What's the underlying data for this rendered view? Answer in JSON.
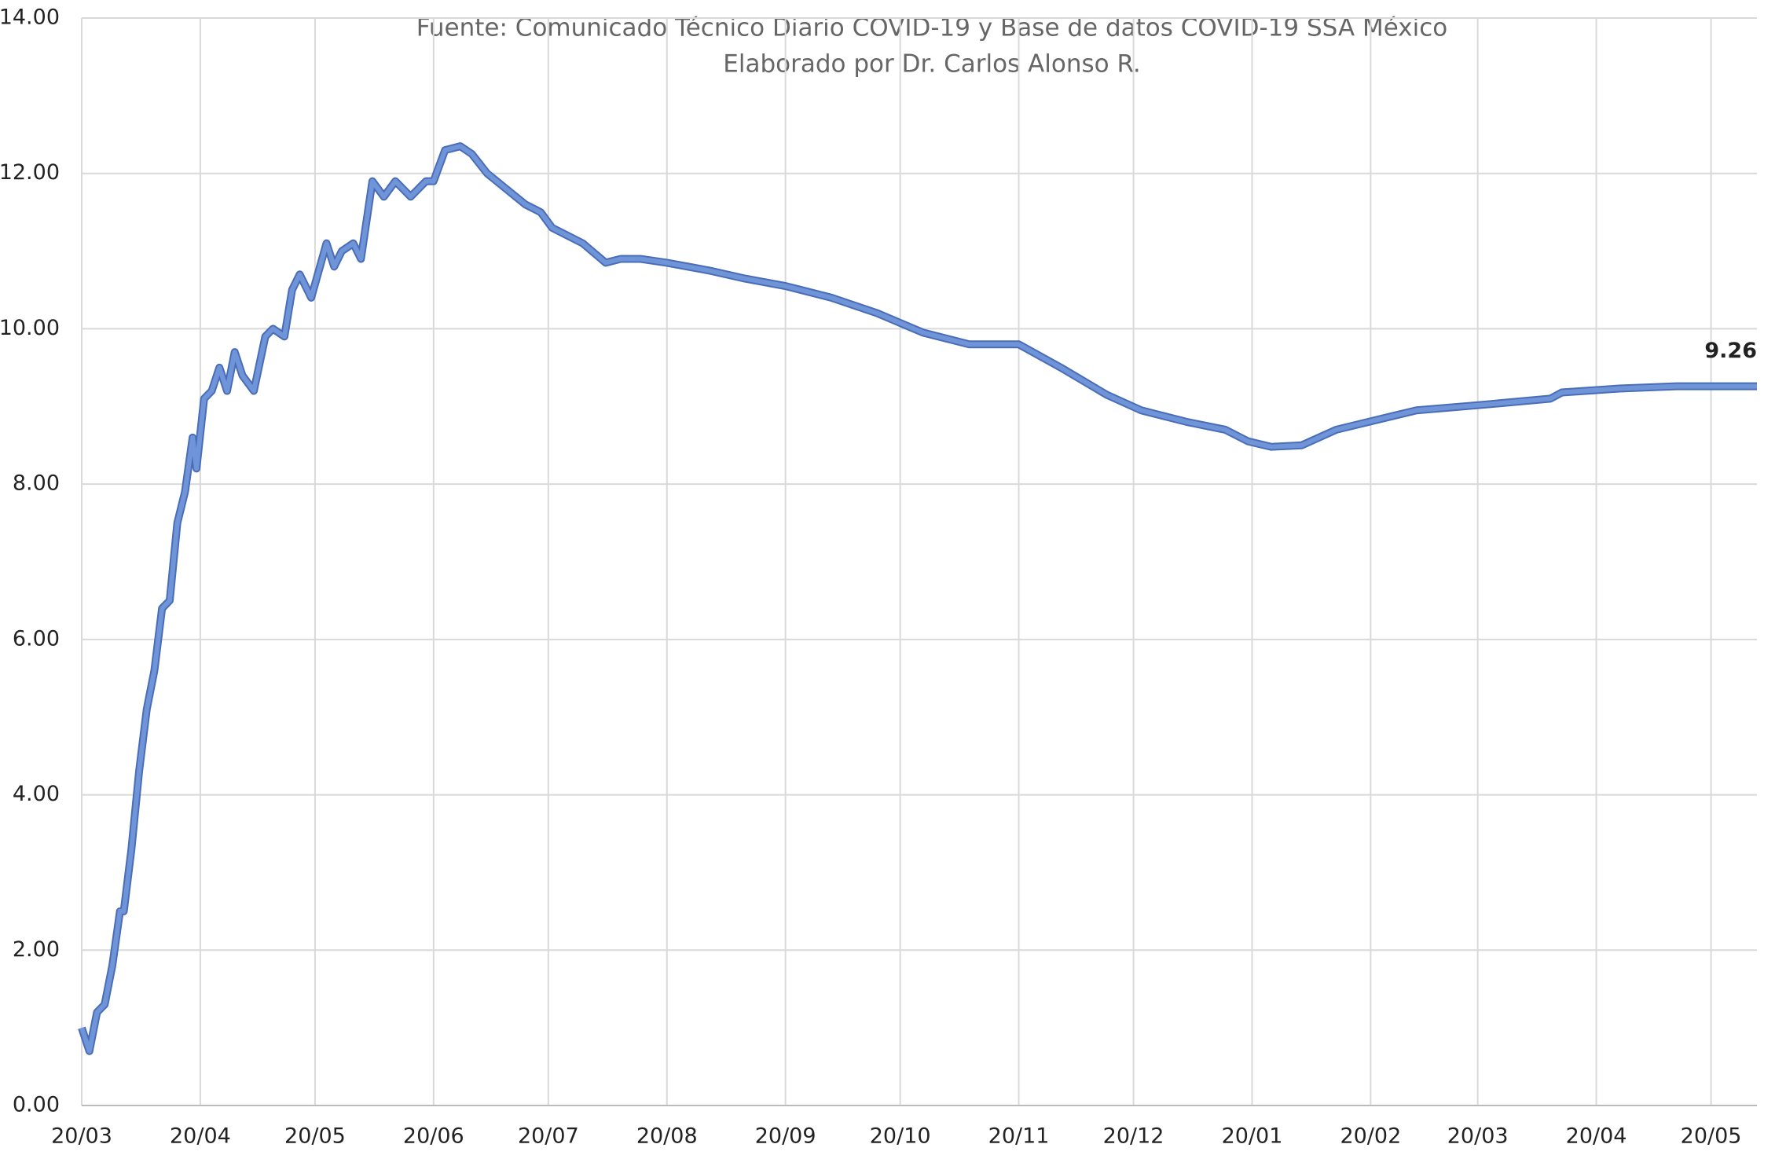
{
  "chart_data": {
    "type": "line",
    "subtitle": [
      "Fuente: Comunicado Técnico Diario COVID-19 y Base de datos COVID-19 SSA México",
      "Elaborado por Dr. Carlos Alonso R."
    ],
    "x": [
      0,
      2,
      4,
      6,
      8,
      10,
      11,
      13,
      15,
      17,
      19,
      21,
      23,
      25,
      27,
      29,
      30,
      32,
      34,
      36,
      38,
      40,
      42,
      45,
      48,
      50,
      53,
      55,
      57,
      60,
      64,
      66,
      68,
      71,
      73,
      76,
      79,
      82,
      86,
      90,
      92,
      95,
      99,
      102,
      106,
      111,
      116,
      120,
      123,
      131,
      137,
      141,
      146,
      153,
      164,
      173,
      184,
      196,
      208,
      220,
      232,
      245,
      256,
      268,
      277,
      289,
      299,
      305,
      311,
      319,
      328,
      338,
      349,
      366,
      384,
      387,
      402,
      417,
      438
    ],
    "series": [
      {
        "color": "#6f94d8",
        "values": [
          1.0,
          0.7,
          1.2,
          1.3,
          1.8,
          2.5,
          2.5,
          3.3,
          4.3,
          5.1,
          5.6,
          6.4,
          6.5,
          7.5,
          7.9,
          8.6,
          8.2,
          9.1,
          9.2,
          9.5,
          9.2,
          9.7,
          9.4,
          9.2,
          9.9,
          10.0,
          9.9,
          10.5,
          10.7,
          10.4,
          11.1,
          10.8,
          11.0,
          11.1,
          10.9,
          11.9,
          11.7,
          11.9,
          11.7,
          11.9,
          11.9,
          12.3,
          12.35,
          12.25,
          12.0,
          11.8,
          11.6,
          11.5,
          11.3,
          11.1,
          10.85,
          10.9,
          10.9,
          10.85,
          10.75,
          10.65,
          10.55,
          10.4,
          10.2,
          9.95,
          9.8,
          9.8,
          9.5,
          9.15,
          8.95,
          8.8,
          8.7,
          8.55,
          8.48,
          8.5,
          8.7,
          8.82,
          8.95,
          9.02,
          9.1,
          9.18,
          9.23,
          9.26,
          9.26
        ]
      }
    ],
    "annotations": [
      {
        "x": 438,
        "y": 9.26
      }
    ],
    "xlim": [
      0,
      438
    ],
    "xticks": [
      {
        "value": 0,
        "label": "20/03"
      },
      {
        "value": 31,
        "label": "20/04"
      },
      {
        "value": 61,
        "label": "20/05"
      },
      {
        "value": 92,
        "label": "20/06"
      },
      {
        "value": 122,
        "label": "20/07"
      },
      {
        "value": 153,
        "label": "20/08"
      },
      {
        "value": 184,
        "label": "20/09"
      },
      {
        "value": 214,
        "label": "20/10"
      },
      {
        "value": 245,
        "label": "20/11"
      },
      {
        "value": 275,
        "label": "20/12"
      },
      {
        "value": 306,
        "label": "20/01"
      },
      {
        "value": 337,
        "label": "20/02"
      },
      {
        "value": 365,
        "label": "20/03"
      },
      {
        "value": 396,
        "label": "20/04"
      },
      {
        "value": 426,
        "label": "20/05"
      }
    ],
    "ylim": [
      0,
      14
    ],
    "yticks": [
      {
        "value": 0,
        "label": "0.00"
      },
      {
        "value": 2,
        "label": "2.00"
      },
      {
        "value": 4,
        "label": "4.00"
      },
      {
        "value": 6,
        "label": "6.00"
      },
      {
        "value": 8,
        "label": "8.00"
      },
      {
        "value": 10,
        "label": "10.00"
      },
      {
        "value": 12,
        "label": "12.00"
      },
      {
        "value": 14,
        "label": "14.00"
      }
    ],
    "grid": true
  }
}
